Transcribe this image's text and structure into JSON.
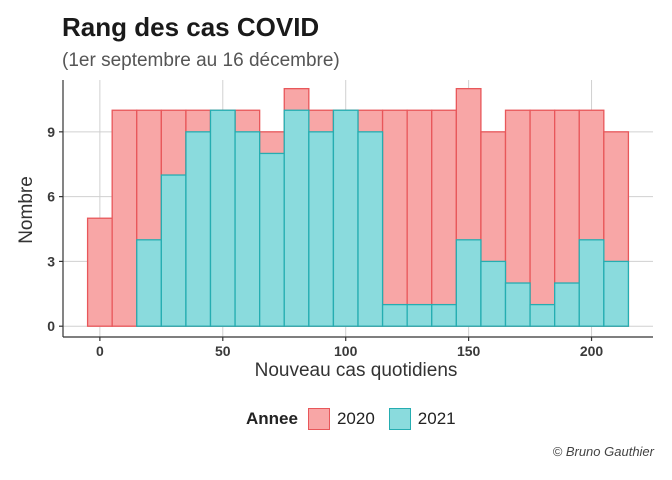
{
  "title": "Rang des cas COVID",
  "subtitle": "(1er septembre au 16 décembre)",
  "legend_title": "Annee",
  "credit": "© Bruno Gauthier",
  "colors": {
    "fill_2020": "#f8a6a6",
    "stroke_2020": "#e8575a",
    "fill_2021": "#8adbdd",
    "stroke_2021": "#25adb1"
  },
  "chart_data": {
    "type": "bar",
    "xlabel": "Nouveau cas quotidiens",
    "ylabel": "Nombre",
    "x_ticks": [
      0,
      50,
      100,
      150,
      200
    ],
    "y_ticks": [
      0,
      3,
      6,
      9
    ],
    "xlim": [
      -15,
      225
    ],
    "ylim": [
      -0.5,
      11.4
    ],
    "bin_width": 10,
    "bins": [
      0,
      10,
      20,
      30,
      40,
      50,
      60,
      70,
      80,
      90,
      100,
      110,
      120,
      130,
      140,
      150,
      160,
      170,
      180,
      190,
      200,
      210
    ],
    "series": [
      {
        "name": "2020",
        "values": [
          5,
          10,
          10,
          10,
          10,
          10,
          10,
          9,
          11,
          10,
          10,
          10,
          10,
          10,
          10,
          11,
          9,
          10,
          10,
          10,
          10,
          9
        ]
      },
      {
        "name": "2021",
        "values": [
          0,
          0,
          4,
          7,
          9,
          10,
          9,
          8,
          10,
          9,
          10,
          9,
          1,
          1,
          1,
          4,
          3,
          2,
          1,
          2,
          4,
          3
        ]
      }
    ]
  }
}
